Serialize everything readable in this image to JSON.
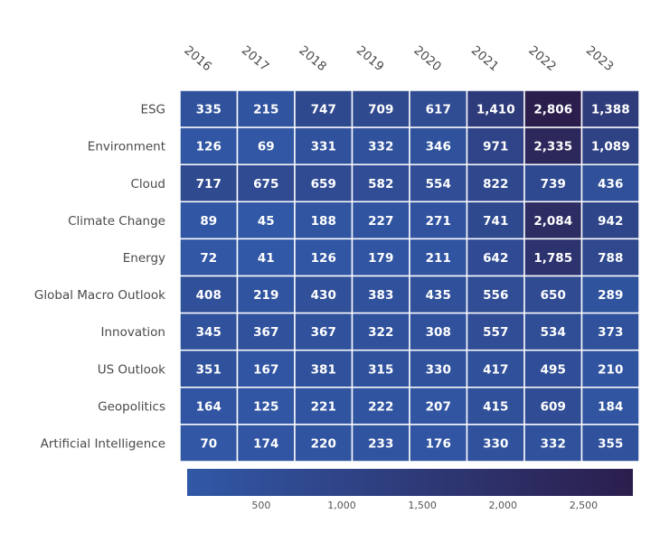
{
  "chart_data": {
    "type": "heatmap",
    "title": "",
    "xlabel": "",
    "ylabel": "",
    "x": [
      "2016",
      "2017",
      "2018",
      "2019",
      "2020",
      "2021",
      "2022",
      "2023"
    ],
    "y": [
      "ESG",
      "Environment",
      "Cloud",
      "Climate Change",
      "Energy",
      "Global Macro Outlook",
      "Innovation",
      "US Outlook",
      "Geopolitics",
      "Artificial Intelligence"
    ],
    "values": [
      [
        335,
        215,
        747,
        709,
        617,
        1410,
        2806,
        1388
      ],
      [
        126,
        69,
        331,
        332,
        346,
        971,
        2335,
        1089
      ],
      [
        717,
        675,
        659,
        582,
        554,
        822,
        739,
        436
      ],
      [
        89,
        45,
        188,
        227,
        271,
        741,
        2084,
        942
      ],
      [
        72,
        41,
        126,
        179,
        211,
        642,
        1785,
        788
      ],
      [
        408,
        219,
        430,
        383,
        435,
        556,
        650,
        289
      ],
      [
        345,
        367,
        367,
        322,
        308,
        557,
        534,
        373
      ],
      [
        351,
        167,
        381,
        315,
        330,
        417,
        495,
        210
      ],
      [
        164,
        125,
        221,
        222,
        207,
        415,
        609,
        184
      ],
      [
        70,
        174,
        220,
        233,
        176,
        330,
        332,
        355
      ]
    ],
    "colorbar": {
      "min": 41,
      "max": 2806,
      "ticks": [
        500,
        1000,
        1500,
        2000,
        2500
      ],
      "tick_labels": [
        "500",
        "1,000",
        "1,500",
        "2,000",
        "2,500"
      ],
      "color_low": "#3158a6",
      "color_high": "#2b1e4d",
      "orientation": "horizontal",
      "placement": "bottom"
    },
    "grid": false,
    "legend": "none"
  }
}
